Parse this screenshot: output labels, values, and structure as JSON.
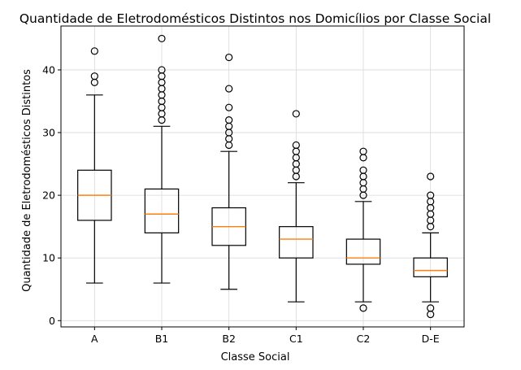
{
  "chart_data": {
    "type": "box",
    "title": "Quantidade de Eletrodomésticos Distintos nos Domicílios por Classe Social",
    "xlabel": "Classe Social",
    "ylabel": "Quantidade de Eletrodomésticos Distintos",
    "ylim": [
      -1,
      47
    ],
    "yticks": [
      0,
      10,
      20,
      30,
      40
    ],
    "grid": true,
    "median_color": "#ff7f0e",
    "categories": [
      "A",
      "B1",
      "B2",
      "C1",
      "C2",
      "D-E"
    ],
    "boxes": [
      {
        "category": "A",
        "whisker_low": 6,
        "q1": 16,
        "median": 20,
        "q3": 24,
        "whisker_high": 36,
        "fliers": [
          38,
          39,
          43
        ]
      },
      {
        "category": "B1",
        "whisker_low": 6,
        "q1": 14,
        "median": 17,
        "q3": 21,
        "whisker_high": 31,
        "fliers": [
          32,
          33,
          34,
          35,
          36,
          37,
          38,
          39,
          40,
          45
        ]
      },
      {
        "category": "B2",
        "whisker_low": 5,
        "q1": 12,
        "median": 15,
        "q3": 18,
        "whisker_high": 27,
        "fliers": [
          28,
          29,
          30,
          31,
          32,
          34,
          37,
          42
        ]
      },
      {
        "category": "C1",
        "whisker_low": 3,
        "q1": 10,
        "median": 13,
        "q3": 15,
        "whisker_high": 22,
        "fliers": [
          23,
          24,
          25,
          26,
          27,
          28,
          33
        ]
      },
      {
        "category": "C2",
        "whisker_low": 3,
        "q1": 9,
        "median": 10,
        "q3": 13,
        "whisker_high": 19,
        "fliers": [
          2,
          20,
          21,
          22,
          23,
          24,
          26,
          27
        ]
      },
      {
        "category": "D-E",
        "whisker_low": 3,
        "q1": 7,
        "median": 8,
        "q3": 10,
        "whisker_high": 14,
        "fliers": [
          1,
          2,
          15,
          16,
          17,
          18,
          19,
          20,
          23
        ]
      }
    ]
  }
}
